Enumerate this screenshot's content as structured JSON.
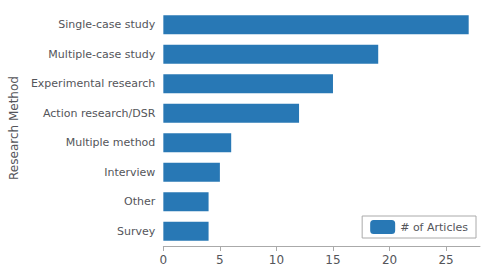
{
  "chart_data": {
    "type": "bar",
    "orientation": "horizontal",
    "ylabel": "Research Method",
    "categories": [
      "Single-case study",
      "Multiple-case study",
      "Experimental research",
      "Action research/DSR",
      "Multiple method",
      "Interview",
      "Other",
      "Survey"
    ],
    "series": [
      {
        "name": "# of Articles",
        "color": "#2878b5",
        "values": [
          27,
          19,
          15,
          12,
          6,
          5,
          4,
          4
        ]
      }
    ],
    "xlim": [
      0,
      28
    ],
    "xticks": [
      0,
      5,
      10,
      15,
      20,
      25
    ],
    "grid": false,
    "legend": "lower right"
  }
}
